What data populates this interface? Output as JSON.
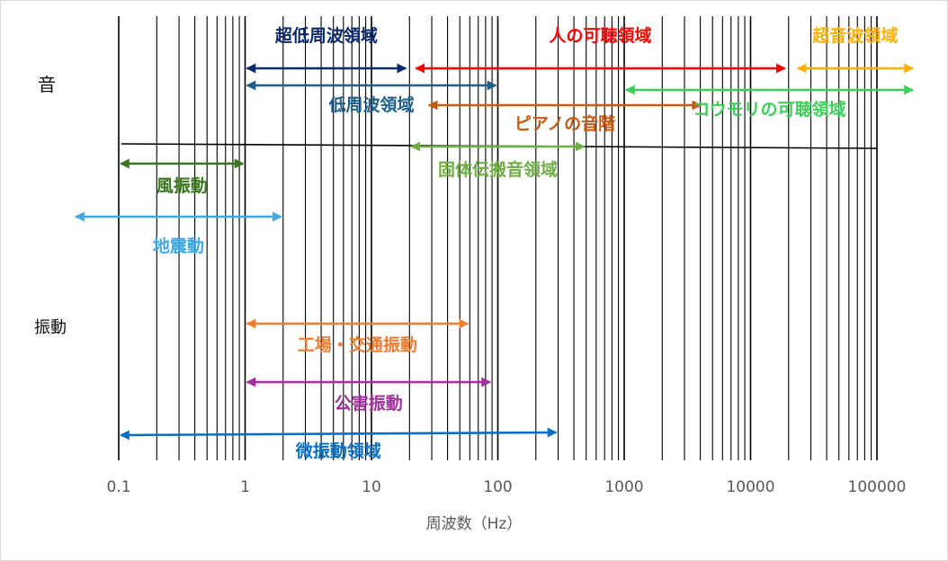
{
  "chart_data": {
    "type": "range-bar",
    "x_scale": "log",
    "xlim": [
      0.1,
      100000
    ],
    "x_ticks": [
      "0.1",
      "1",
      "10",
      "100",
      "1000",
      "10000",
      "100000"
    ],
    "xlabel": "周波数（Hz）",
    "grid": "vertical minor+major",
    "category_labels": {
      "sound": "音",
      "vibration": "振動"
    },
    "divider_line": {
      "from": 0.1,
      "to": 100000
    },
    "ranges": [
      {
        "label": "超低周波領域",
        "from": 1,
        "to": 20,
        "color": "#0b2a6b",
        "row": 0,
        "label_pos": "above"
      },
      {
        "label": "人の可聴領域",
        "from": 20,
        "to": 20000,
        "color": "#ff0000",
        "row": 0,
        "label_pos": "above"
      },
      {
        "label": "超音波領域",
        "from": 20000,
        "to": 100000,
        "color": "#ffb000",
        "row": 0,
        "label_pos": "above"
      },
      {
        "label": "低周波領域",
        "from": 1,
        "to": 100,
        "color": "#1f5f8b",
        "row": 1,
        "label_pos": "below"
      },
      {
        "label": "コウモリの可聴領域",
        "from": 1000,
        "to": 100000,
        "color": "#3ecf5a",
        "row": 2,
        "label_pos": "below"
      },
      {
        "label": "ピアノの音階",
        "from": 27.5,
        "to": 4186,
        "color": "#c55a11",
        "row": 3,
        "label_pos": "below"
      },
      {
        "label": "固体伝搬音領域",
        "from": 20,
        "to": 500,
        "color": "#70ad47",
        "row": 4,
        "label_pos": "below"
      },
      {
        "label": "風振動",
        "from": 0.1,
        "to": 1,
        "color": "#38761d",
        "row": 5,
        "label_pos": "below"
      },
      {
        "label": "地震動",
        "from": 0.01,
        "to": 2,
        "color": "#41a8e0",
        "row": 6,
        "label_pos": "below"
      },
      {
        "label": "工場・交通振動",
        "from": 1,
        "to": 60,
        "color": "#ed7d31",
        "row": 7,
        "label_pos": "below"
      },
      {
        "label": "公害振動",
        "from": 1,
        "to": 90,
        "color": "#a0309c",
        "row": 8,
        "label_pos": "below"
      },
      {
        "label": "微振動領域",
        "from": 0.1,
        "to": 300,
        "color": "#0a6fc2",
        "row": 9,
        "label_pos": "below"
      }
    ]
  }
}
